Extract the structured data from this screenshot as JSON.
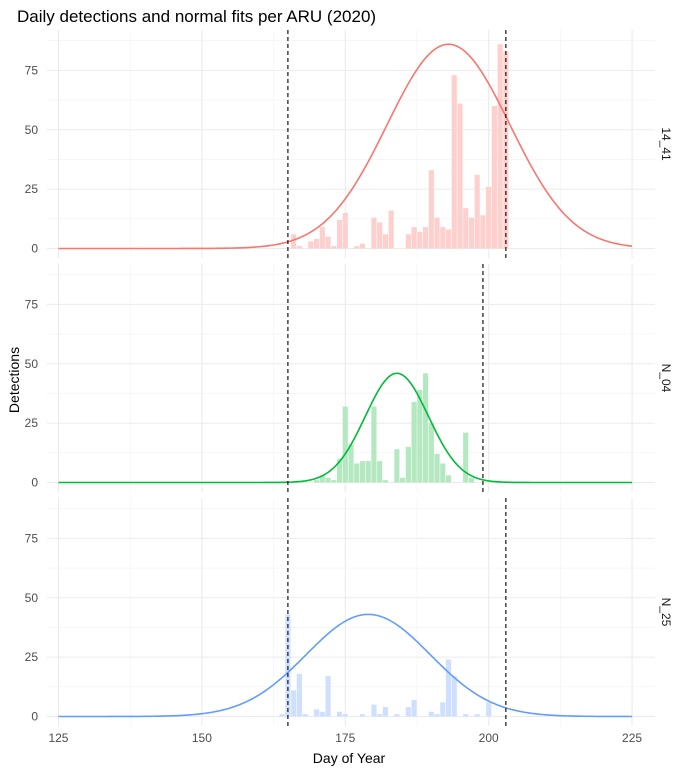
{
  "chart_data": {
    "type": "bar",
    "title": "Daily detections and normal fits per ARU (2020)",
    "xlabel": "Day of Year",
    "ylabel": "Detections",
    "xlim": [
      123,
      229
    ],
    "ylim": [
      -4,
      92
    ],
    "x_ticks": [
      125,
      150,
      175,
      200,
      225
    ],
    "y_ticks": [
      0,
      25,
      50,
      75
    ],
    "grid": true,
    "panels": [
      {
        "name": "14_41",
        "color": "#F8766D",
        "bar_color": "#FDD0CD",
        "bars": [
          {
            "x": 166,
            "y": 6
          },
          {
            "x": 167,
            "y": 1
          },
          {
            "x": 169,
            "y": 3
          },
          {
            "x": 170,
            "y": 4
          },
          {
            "x": 171,
            "y": 9
          },
          {
            "x": 172,
            "y": 5
          },
          {
            "x": 173,
            "y": 1
          },
          {
            "x": 174,
            "y": 12
          },
          {
            "x": 175,
            "y": 15
          },
          {
            "x": 177,
            "y": 1
          },
          {
            "x": 178,
            "y": 2
          },
          {
            "x": 180,
            "y": 13
          },
          {
            "x": 181,
            "y": 11
          },
          {
            "x": 182,
            "y": 6
          },
          {
            "x": 183,
            "y": 16
          },
          {
            "x": 186,
            "y": 6
          },
          {
            "x": 187,
            "y": 9
          },
          {
            "x": 188,
            "y": 7
          },
          {
            "x": 189,
            "y": 9
          },
          {
            "x": 190,
            "y": 33
          },
          {
            "x": 191,
            "y": 13
          },
          {
            "x": 192,
            "y": 9
          },
          {
            "x": 193,
            "y": 8
          },
          {
            "x": 194,
            "y": 73
          },
          {
            "x": 195,
            "y": 61
          },
          {
            "x": 196,
            "y": 17
          },
          {
            "x": 197,
            "y": 13
          },
          {
            "x": 198,
            "y": 31
          },
          {
            "x": 199,
            "y": 14
          },
          {
            "x": 200,
            "y": 26
          },
          {
            "x": 201,
            "y": 60
          },
          {
            "x": 202,
            "y": 86
          },
          {
            "x": 203,
            "y": 83
          }
        ],
        "fit": {
          "mean": 193,
          "sd": 10.7,
          "peak": 86
        },
        "vlines": [
          165,
          203
        ]
      },
      {
        "name": "N_04",
        "color": "#00BA38",
        "bar_color": "#B3E8C1",
        "bars": [
          {
            "x": 170,
            "y": 1
          },
          {
            "x": 171,
            "y": 3
          },
          {
            "x": 172,
            "y": 2
          },
          {
            "x": 173,
            "y": 1
          },
          {
            "x": 174,
            "y": 10
          },
          {
            "x": 175,
            "y": 32
          },
          {
            "x": 176,
            "y": 16
          },
          {
            "x": 177,
            "y": 8
          },
          {
            "x": 178,
            "y": 9
          },
          {
            "x": 179,
            "y": 9
          },
          {
            "x": 180,
            "y": 32
          },
          {
            "x": 181,
            "y": 9
          },
          {
            "x": 182,
            "y": 1
          },
          {
            "x": 184,
            "y": 14
          },
          {
            "x": 185,
            "y": 2
          },
          {
            "x": 186,
            "y": 15
          },
          {
            "x": 187,
            "y": 34
          },
          {
            "x": 188,
            "y": 39
          },
          {
            "x": 189,
            "y": 46
          },
          {
            "x": 190,
            "y": 25
          },
          {
            "x": 191,
            "y": 12
          },
          {
            "x": 192,
            "y": 8
          },
          {
            "x": 193,
            "y": 3
          },
          {
            "x": 196,
            "y": 21
          },
          {
            "x": 197,
            "y": 2
          }
        ],
        "fit": {
          "mean": 184,
          "sd": 5.5,
          "peak": 46
        },
        "vlines": [
          165,
          199
        ]
      },
      {
        "name": "N_25",
        "color": "#619CFF",
        "bar_color": "#CFE0FF",
        "bars": [
          {
            "x": 164,
            "y": 1
          },
          {
            "x": 165,
            "y": 43
          },
          {
            "x": 166,
            "y": 11
          },
          {
            "x": 167,
            "y": 18
          },
          {
            "x": 168,
            "y": 1
          },
          {
            "x": 170,
            "y": 3
          },
          {
            "x": 171,
            "y": 2
          },
          {
            "x": 172,
            "y": 17
          },
          {
            "x": 174,
            "y": 2
          },
          {
            "x": 175,
            "y": 1
          },
          {
            "x": 178,
            "y": 1
          },
          {
            "x": 180,
            "y": 5
          },
          {
            "x": 181,
            "y": 1
          },
          {
            "x": 182,
            "y": 4
          },
          {
            "x": 184,
            "y": 1
          },
          {
            "x": 186,
            "y": 4
          },
          {
            "x": 187,
            "y": 7
          },
          {
            "x": 190,
            "y": 2
          },
          {
            "x": 191,
            "y": 1
          },
          {
            "x": 192,
            "y": 6
          },
          {
            "x": 193,
            "y": 24
          },
          {
            "x": 194,
            "y": 17
          },
          {
            "x": 196,
            "y": 1
          },
          {
            "x": 198,
            "y": 1
          },
          {
            "x": 200,
            "y": 6
          }
        ],
        "fit": {
          "mean": 179,
          "sd": 10.8,
          "peak": 43
        },
        "vlines": [
          165,
          203
        ]
      }
    ]
  }
}
